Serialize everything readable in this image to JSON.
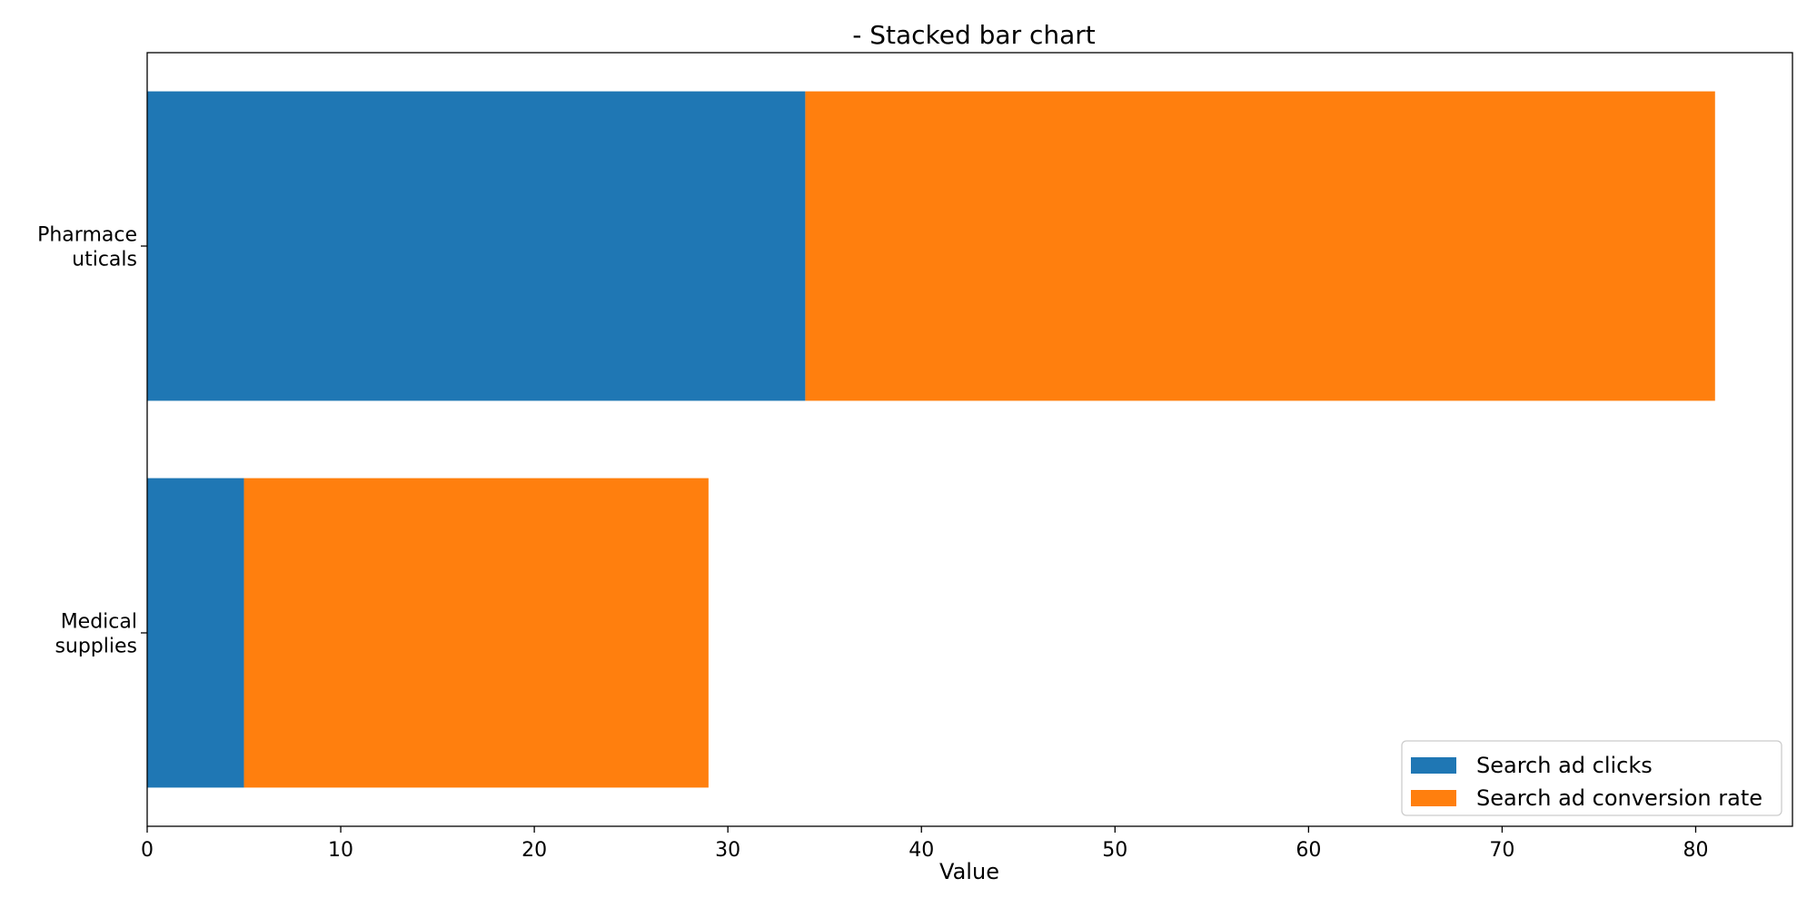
{
  "chart_data": {
    "type": "bar",
    "orientation": "horizontal",
    "stacked": true,
    "title": "- Stacked bar chart",
    "xlabel": "Value",
    "ylabel": "",
    "categories": [
      "Pharmaceuticals",
      "Medical supplies"
    ],
    "category_labels": [
      [
        "Pharmace",
        "uticals"
      ],
      [
        "Medical",
        "supplies"
      ]
    ],
    "series": [
      {
        "name": "Search ad clicks",
        "color": "#1f77b4",
        "values": [
          34,
          5
        ]
      },
      {
        "name": "Search ad conversion rate",
        "color": "#ff7f0e",
        "values": [
          47,
          24
        ]
      }
    ],
    "xlim": [
      0,
      85
    ],
    "xticks": [
      0,
      10,
      20,
      30,
      40,
      50,
      60,
      70,
      80
    ],
    "grid": false,
    "legend_position": "bottom-right"
  }
}
